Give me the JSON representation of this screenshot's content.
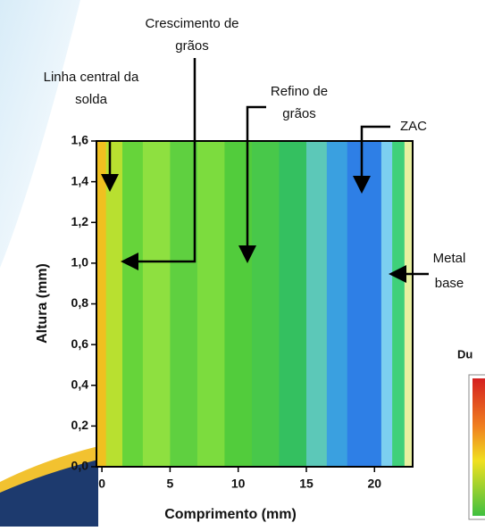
{
  "chart_data": {
    "type": "heatmap",
    "x_label": "Comprimento (mm)",
    "y_label": "Altura (mm)",
    "xlim": [
      -0.4,
      22.8
    ],
    "ylim": [
      0,
      1.6
    ],
    "xticks": [
      0,
      5,
      10,
      15,
      20
    ],
    "yticks": [
      {
        "value": 0,
        "label": "0,0"
      },
      {
        "value": 0.2,
        "label": "0,2"
      },
      {
        "value": 0.4,
        "label": "0,4"
      },
      {
        "value": 0.6,
        "label": "0,6"
      },
      {
        "value": 0.8,
        "label": "0,8"
      },
      {
        "value": 1.0,
        "label": "1,0"
      },
      {
        "value": 1.2,
        "label": "1,2"
      },
      {
        "value": 1.4,
        "label": "1,4"
      },
      {
        "value": 1.6,
        "label": "1,6"
      }
    ],
    "x": [
      -0.4,
      0.3,
      1.5,
      3,
      5,
      7,
      9,
      11,
      13,
      15,
      16.5,
      18,
      20.5,
      21.3,
      22.2,
      22.8
    ],
    "colors": [
      "#f0c020",
      "#b8e030",
      "#66d43a",
      "#8ee040",
      "#5fd040",
      "#7cdc3e",
      "#52cc3c",
      "#48c84a",
      "#34c060",
      "#5cc8b8",
      "#3aa0e0",
      "#2e7fe6",
      "#7ccff0",
      "#3fd07a",
      "#e8f0a0"
    ],
    "annotations": [
      [
        "Crescimento de",
        "grãos"
      ],
      [
        "Linha central da",
        "solda"
      ],
      [
        "Refino de",
        "grãos"
      ],
      [
        "ZAC"
      ],
      [
        "Metal",
        "base"
      ]
    ],
    "colorbar_title": "Du"
  }
}
